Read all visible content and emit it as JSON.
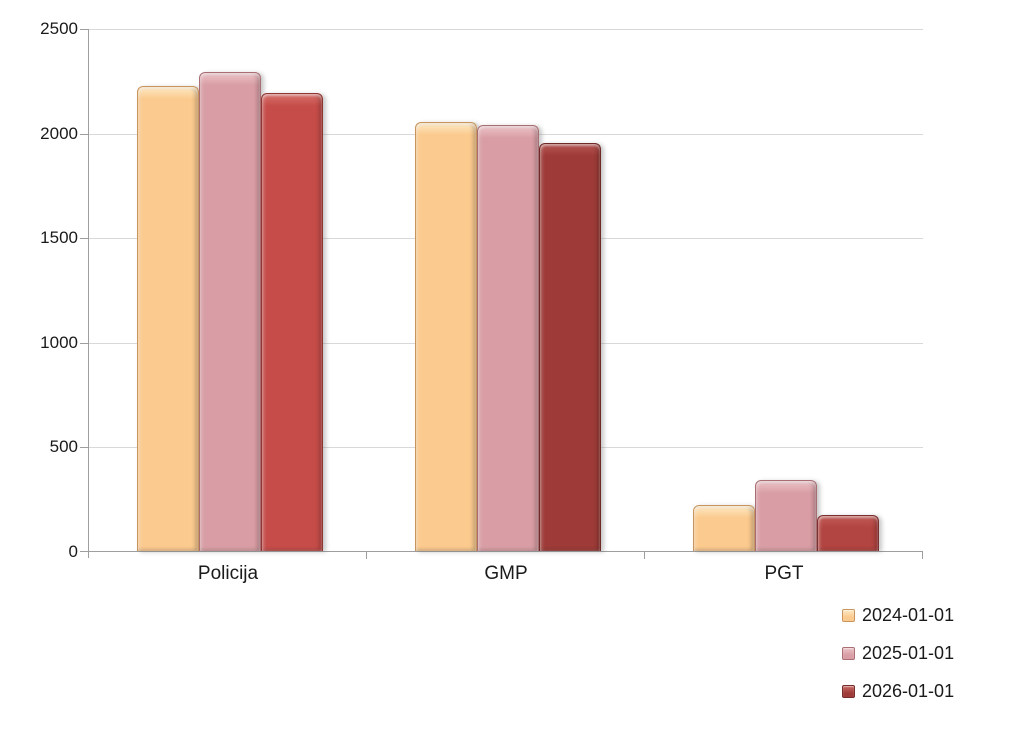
{
  "chart_data": {
    "type": "bar",
    "title": "",
    "xlabel": "",
    "ylabel": "",
    "categories": [
      "Policija",
      "GMP",
      "PGT"
    ],
    "series": [
      {
        "name": "2024-01-01",
        "values": [
          2225,
          2050,
          220
        ],
        "color": "#FBCA8E",
        "highlight": "#FDE9C4",
        "edge": "#C9955C"
      },
      {
        "name": "2025-01-01",
        "values": [
          2290,
          2035,
          340
        ],
        "color": "#D99EA5",
        "highlight": "#EBC3C7",
        "edge": "#A96E74"
      },
      {
        "name": "2026-01-01",
        "values": [
          2190,
          1950,
          170
        ],
        "color": "#9E3B38",
        "highlight": "#C96A65",
        "edge": "#762C2A",
        "bar_colors": [
          "#C54C49",
          "#9E3B38",
          "#B24441"
        ],
        "bar_highlights": [
          "#D8716C",
          "#B55551",
          "#C25A55"
        ],
        "bar_edges": [
          "#8E3634",
          "#6F2A28",
          "#7C302E"
        ]
      }
    ],
    "ylim": [
      0,
      2500
    ],
    "yticks": [
      0,
      500,
      1000,
      1500,
      2000,
      2500
    ],
    "grid": true,
    "legend_position": "bottom-right"
  },
  "colors": {
    "background": "#FFFFFF",
    "grid": "#D9D9D9",
    "axis": "#9E9E9E",
    "text": "#1A1A1A"
  }
}
